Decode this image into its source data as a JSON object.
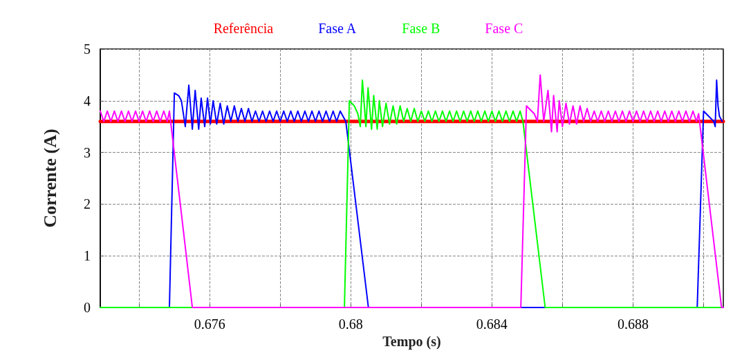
{
  "chart_data": {
    "type": "line",
    "xlabel": "Tempo (s)",
    "ylabel": "Corrente (A)",
    "xlim": [
      0.6729,
      0.69056
    ],
    "xticks": [
      {
        "value": 0.674,
        "label": null
      },
      0.676,
      {
        "value": 0.678,
        "label": null
      },
      0.68,
      {
        "value": 0.682,
        "label": null
      },
      0.684,
      {
        "value": 0.686,
        "label": null
      },
      0.688,
      {
        "value": 0.69,
        "label": null
      }
    ],
    "ylim": [
      0,
      5
    ],
    "yticks": [
      0,
      1,
      2,
      3,
      4,
      5
    ],
    "grid": true,
    "legend": "top",
    "marker": "none",
    "line_style": "solid",
    "series": [
      {
        "name": "Referência",
        "color": "#ff0000",
        "x": [
          0.6729,
          0.69056
        ],
        "values": [
          3.6,
          3.6
        ]
      },
      {
        "name": "Fase A",
        "color": "#0000ff",
        "x": [
          0.6729,
          0.67486,
          0.675,
          0.67512,
          0.6752,
          0.67531,
          0.67541,
          0.67551,
          0.67559,
          0.67569,
          0.67576,
          0.67586,
          0.67594,
          0.67602,
          0.6761,
          0.6762,
          0.6763,
          0.6764,
          0.6765,
          0.6766,
          0.6767,
          0.6768,
          0.6769,
          0.677,
          0.6771,
          0.6772,
          0.6773,
          0.6774,
          0.6775,
          0.6776,
          0.6777,
          0.6778,
          0.6779,
          0.678,
          0.6781,
          0.6782,
          0.6783,
          0.6784,
          0.6785,
          0.6786,
          0.6787,
          0.6788,
          0.6789,
          0.679,
          0.6791,
          0.6792,
          0.6793,
          0.6794,
          0.6795,
          0.6796,
          0.6797,
          0.67986,
          0.6805,
          0.68982,
          0.69,
          0.69029,
          0.69033,
          0.69037,
          0.69041,
          0.69045,
          0.69053
        ],
        "values": [
          0,
          0,
          4.15,
          4.1,
          4.0,
          3.5,
          4.3,
          3.45,
          4.2,
          3.45,
          4.05,
          3.5,
          4.05,
          3.55,
          4.0,
          3.55,
          3.95,
          3.55,
          3.9,
          3.6,
          3.9,
          3.6,
          3.85,
          3.6,
          3.85,
          3.6,
          3.8,
          3.6,
          3.8,
          3.6,
          3.8,
          3.6,
          3.8,
          3.6,
          3.8,
          3.6,
          3.8,
          3.6,
          3.8,
          3.6,
          3.8,
          3.6,
          3.8,
          3.6,
          3.8,
          3.6,
          3.8,
          3.6,
          3.8,
          3.6,
          3.8,
          3.6,
          0,
          0,
          3.8,
          3.6,
          3.5,
          4.4,
          3.9,
          3.7,
          3.6
        ]
      },
      {
        "name": "Fase B",
        "color": "#00ff00",
        "x": [
          0.6729,
          0.67982,
          0.67996,
          0.6801,
          0.6802,
          0.68027,
          0.68033,
          0.68043,
          0.68049,
          0.68059,
          0.68065,
          0.68075,
          0.68081,
          0.6809,
          0.681,
          0.6811,
          0.6812,
          0.6813,
          0.6814,
          0.6815,
          0.6816,
          0.6817,
          0.6818,
          0.6819,
          0.682,
          0.6821,
          0.6822,
          0.6823,
          0.6824,
          0.6825,
          0.6826,
          0.6827,
          0.6828,
          0.6829,
          0.683,
          0.6831,
          0.6832,
          0.6833,
          0.6834,
          0.6835,
          0.6836,
          0.6837,
          0.6838,
          0.6839,
          0.684,
          0.6841,
          0.6842,
          0.6843,
          0.6844,
          0.6845,
          0.6846,
          0.6847,
          0.6848,
          0.68488,
          0.68551,
          0.69056
        ],
        "values": [
          0,
          0,
          4.0,
          3.9,
          3.75,
          3.5,
          4.4,
          3.5,
          4.25,
          3.45,
          4.1,
          3.45,
          4.0,
          3.5,
          3.95,
          3.55,
          3.9,
          3.55,
          3.9,
          3.6,
          3.85,
          3.6,
          3.85,
          3.6,
          3.8,
          3.6,
          3.8,
          3.6,
          3.8,
          3.6,
          3.8,
          3.6,
          3.8,
          3.6,
          3.8,
          3.6,
          3.8,
          3.6,
          3.8,
          3.6,
          3.8,
          3.6,
          3.8,
          3.6,
          3.8,
          3.6,
          3.8,
          3.6,
          3.8,
          3.6,
          3.8,
          3.6,
          3.8,
          3.6,
          0,
          0
        ]
      },
      {
        "name": "Fase C",
        "color": "#ff00ff",
        "x": [
          0.6729,
          0.673,
          0.6731,
          0.6732,
          0.6733,
          0.6734,
          0.6735,
          0.6736,
          0.6737,
          0.6738,
          0.6739,
          0.674,
          0.6741,
          0.6742,
          0.6743,
          0.6744,
          0.6745,
          0.6746,
          0.6747,
          0.6748,
          0.67486,
          0.67551,
          0.68482,
          0.68498,
          0.6852,
          0.68529,
          0.68537,
          0.68547,
          0.68559,
          0.68569,
          0.68575,
          0.68585,
          0.68591,
          0.686,
          0.6861,
          0.6862,
          0.6863,
          0.6864,
          0.6865,
          0.6866,
          0.6867,
          0.6868,
          0.6869,
          0.687,
          0.6871,
          0.6872,
          0.6873,
          0.6874,
          0.6875,
          0.6876,
          0.6877,
          0.6878,
          0.6879,
          0.688,
          0.6881,
          0.6882,
          0.6883,
          0.6884,
          0.6885,
          0.6886,
          0.6887,
          0.6888,
          0.6889,
          0.689,
          0.6891,
          0.6892,
          0.6893,
          0.6894,
          0.6895,
          0.6896,
          0.6897,
          0.6898,
          0.68986,
          0.69051,
          0.69056
        ],
        "values": [
          3.8,
          3.6,
          3.8,
          3.6,
          3.8,
          3.6,
          3.8,
          3.6,
          3.8,
          3.6,
          3.8,
          3.6,
          3.8,
          3.6,
          3.8,
          3.6,
          3.8,
          3.6,
          3.8,
          3.6,
          3.8,
          0,
          0,
          3.9,
          3.75,
          3.6,
          4.5,
          3.6,
          4.2,
          3.4,
          4.1,
          3.4,
          4.0,
          3.5,
          3.95,
          3.55,
          3.9,
          3.55,
          3.9,
          3.6,
          3.85,
          3.6,
          3.8,
          3.6,
          3.8,
          3.6,
          3.8,
          3.6,
          3.8,
          3.6,
          3.8,
          3.6,
          3.8,
          3.6,
          3.8,
          3.6,
          3.8,
          3.6,
          3.8,
          3.6,
          3.8,
          3.6,
          3.8,
          3.6,
          3.8,
          3.6,
          3.8,
          3.6,
          3.8,
          3.6,
          3.8,
          3.6,
          3.75,
          0,
          0
        ]
      }
    ]
  }
}
